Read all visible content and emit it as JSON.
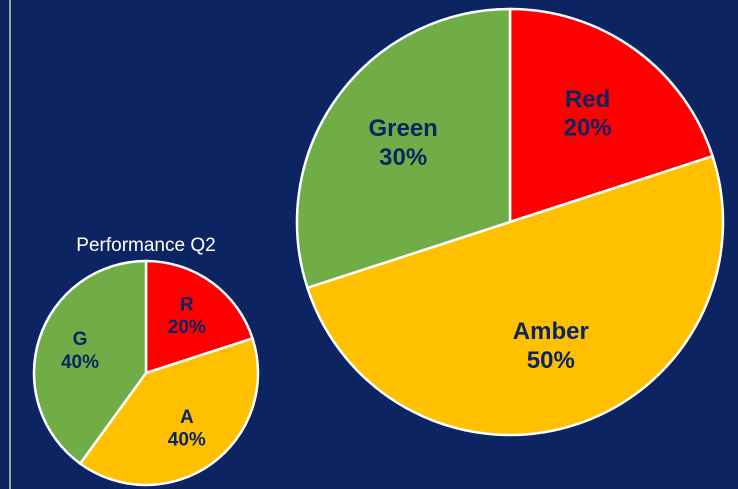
{
  "chart_data": [
    {
      "type": "pie",
      "title": "Performance Q2",
      "categories": [
        "R",
        "A",
        "G"
      ],
      "values": [
        20,
        40,
        40
      ],
      "value_labels": [
        "20%",
        "40%",
        "40%"
      ],
      "colors": [
        "#ff0000",
        "#ffc000",
        "#70ad47"
      ]
    },
    {
      "type": "pie",
      "categories": [
        "Red",
        "Amber",
        "Green"
      ],
      "values": [
        20,
        50,
        30
      ],
      "value_labels": [
        "20%",
        "50%",
        "30%"
      ],
      "colors": [
        "#ff0000",
        "#ffc000",
        "#70ad47"
      ]
    }
  ]
}
